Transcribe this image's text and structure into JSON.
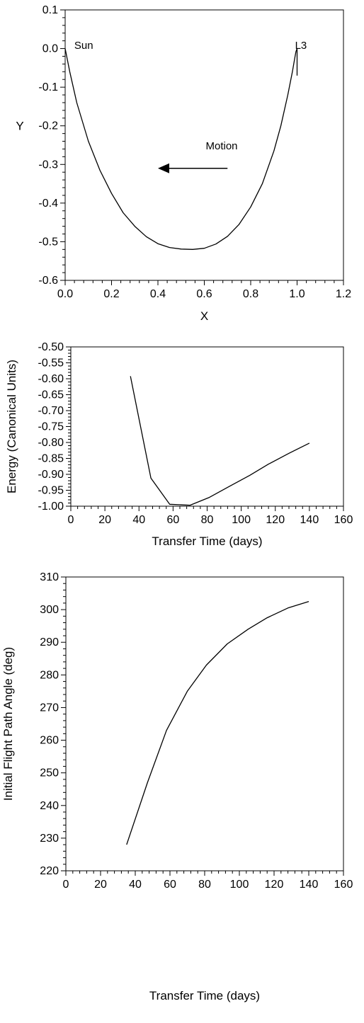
{
  "chart_data": [
    {
      "type": "line",
      "xlabel": "X",
      "ylabel": "Y",
      "xlim": [
        0.0,
        1.2
      ],
      "ylim": [
        -0.6,
        0.1
      ],
      "xticks": [
        0.0,
        0.2,
        0.4,
        0.6,
        0.8,
        1.0,
        1.2
      ],
      "xtick_labels": [
        "0.0",
        "0.2",
        "0.4",
        "0.6",
        "0.8",
        "1.0",
        "1.2"
      ],
      "yticks": [
        0.1,
        0.0,
        -0.1,
        -0.2,
        -0.3,
        -0.4,
        -0.5,
        -0.6
      ],
      "ytick_labels": [
        "0.1",
        "0.0",
        "-0.1",
        "-0.2",
        "-0.3",
        "-0.4",
        "-0.5",
        "-0.6"
      ],
      "grid": false,
      "series": [
        {
          "x": [
            0.0,
            0.02,
            0.05,
            0.1,
            0.15,
            0.2,
            0.25,
            0.3,
            0.35,
            0.4,
            0.45,
            0.5,
            0.55,
            0.6,
            0.65,
            0.7,
            0.75,
            0.8,
            0.85,
            0.9,
            0.93,
            0.96,
            0.98,
            0.99,
            0.995,
            1.0
          ],
          "y": [
            0.0,
            -0.06,
            -0.14,
            -0.24,
            -0.315,
            -0.375,
            -0.425,
            -0.46,
            -0.487,
            -0.505,
            -0.515,
            -0.519,
            -0.52,
            -0.517,
            -0.506,
            -0.486,
            -0.455,
            -0.41,
            -0.35,
            -0.265,
            -0.2,
            -0.12,
            -0.06,
            -0.025,
            -0.008,
            0.0
          ]
        },
        {
          "x": [
            1.0,
            1.0
          ],
          "y": [
            0.0,
            -0.07
          ]
        }
      ],
      "annotations": [
        {
          "text": "Sun",
          "x": 0.015,
          "y": 0.01
        },
        {
          "text": "L3",
          "x": 0.985,
          "y": 0.01
        },
        {
          "text": "Motion",
          "x": 0.6,
          "y": -0.25
        }
      ],
      "arrow": {
        "from": [
          0.7,
          -0.31
        ],
        "to": [
          0.4,
          -0.31
        ],
        "direction": "left"
      }
    },
    {
      "type": "line",
      "xlabel": "Transfer Time (days)",
      "ylabel": "Energy (Canonical Units)",
      "xlim": [
        0,
        160
      ],
      "ylim": [
        -1.0,
        -0.5
      ],
      "xticks": [
        0,
        20,
        40,
        60,
        80,
        100,
        120,
        140,
        160
      ],
      "xtick_labels": [
        "0",
        "20",
        "40",
        "60",
        "80",
        "100",
        "120",
        "140",
        "160"
      ],
      "yticks": [
        -0.5,
        -0.55,
        -0.6,
        -0.65,
        -0.7,
        -0.75,
        -0.8,
        -0.85,
        -0.9,
        -0.95,
        -1.0
      ],
      "ytick_labels": [
        "-0.50",
        "-0.55",
        "-0.60",
        "-0.65",
        "-0.70",
        "-0.75",
        "-0.80",
        "-0.85",
        "-0.90",
        "-0.95",
        "-1.00"
      ],
      "grid": false,
      "series": [
        {
          "x": [
            35,
            47,
            58,
            70,
            81,
            93,
            105,
            116,
            128,
            140
          ],
          "y": [
            -0.592,
            -0.912,
            -0.994,
            -0.997,
            -0.973,
            -0.938,
            -0.903,
            -0.868,
            -0.834,
            -0.802
          ]
        }
      ]
    },
    {
      "type": "line",
      "xlabel": "Transfer Time (days)",
      "ylabel": "Initial Flight Path Angle (deg)",
      "xlim": [
        0,
        160
      ],
      "ylim": [
        220,
        310
      ],
      "xticks": [
        0,
        20,
        40,
        60,
        80,
        100,
        120,
        140,
        160
      ],
      "xtick_labels": [
        "0",
        "20",
        "40",
        "60",
        "80",
        "100",
        "120",
        "140",
        "160"
      ],
      "yticks": [
        310,
        300,
        290,
        280,
        270,
        260,
        250,
        240,
        230,
        220
      ],
      "ytick_labels": [
        "310",
        "300",
        "290",
        "280",
        "270",
        "260",
        "250",
        "240",
        "230",
        "220"
      ],
      "grid": false,
      "series": [
        {
          "x": [
            35,
            47,
            58,
            70,
            81,
            93,
            105,
            116,
            128,
            140
          ],
          "y": [
            228,
            247,
            263,
            275,
            283,
            289.5,
            294,
            297.5,
            300.5,
            302.5
          ]
        }
      ]
    }
  ]
}
